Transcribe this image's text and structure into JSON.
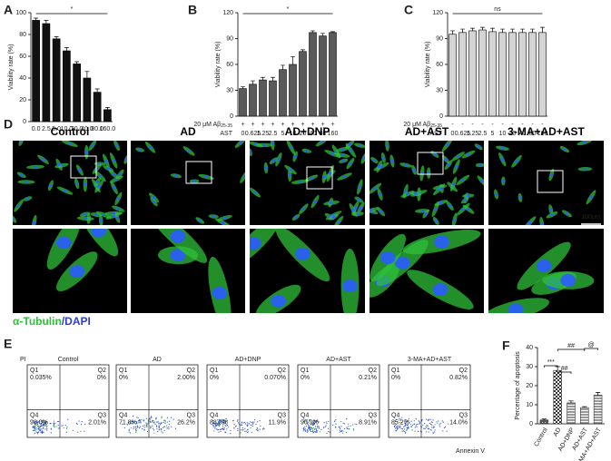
{
  "panel_labels": [
    "A",
    "B",
    "C",
    "D",
    "E",
    "F"
  ],
  "chart_data": [
    {
      "type": "bar",
      "ylabel": "Viability rate (%)",
      "categories": [
        "0.0",
        "2.5",
        "5.0",
        "10.0",
        "20.0",
        "40.0",
        "80.0",
        "160.0"
      ],
      "values": [
        93,
        90,
        76,
        65,
        53,
        40,
        27,
        11
      ],
      "errors": [
        2,
        3,
        2,
        3,
        2,
        6,
        3,
        2
      ],
      "color": "#111111",
      "ylim": [
        0,
        100
      ],
      "yticks": [
        0,
        20,
        40,
        60,
        80,
        100
      ],
      "annotation": "*"
    },
    {
      "type": "bar",
      "ylabel": "Viability rate (%)",
      "categories": [
        "0",
        "0.625",
        "1.25",
        "2.5",
        "5",
        "10",
        "20",
        "40",
        "80",
        "160"
      ],
      "category_row_label": "AST",
      "treatment_row": {
        "label": "20 μM Aβ",
        "label_sub": "25-35",
        "signs": [
          "+",
          "+",
          "+",
          "+",
          "+",
          "+",
          "+",
          "+",
          "+",
          "+"
        ]
      },
      "values": [
        32,
        37,
        42,
        41,
        54,
        60,
        75,
        97,
        93,
        97
      ],
      "errors": [
        2,
        4,
        3,
        4,
        5,
        9,
        2,
        2,
        3,
        1
      ],
      "color": "#5a5a5a",
      "ylim": [
        0,
        120
      ],
      "yticks": [
        0,
        30,
        60,
        90,
        120
      ],
      "annotation": "*"
    },
    {
      "type": "bar",
      "ylabel": "Viability rate (%)",
      "categories": [
        "0",
        "0.625",
        "1.25",
        "2.5",
        "5",
        "10",
        "20",
        "40",
        "80",
        "160"
      ],
      "category_row_label": "AST",
      "treatment_row": {
        "label": "20 μM Aβ",
        "label_sub": "25-35",
        "signs": [
          "-",
          "-",
          "-",
          "-",
          "-",
          "-",
          "-",
          "-",
          "-",
          "-"
        ]
      },
      "values": [
        95,
        97,
        99,
        100,
        98,
        97,
        97,
        97,
        97,
        97
      ],
      "errors": [
        4,
        4,
        3,
        3,
        4,
        4,
        4,
        4,
        4,
        6
      ],
      "color": "#d4d4d4",
      "ylim": [
        0,
        120
      ],
      "yticks": [
        0,
        30,
        60,
        90,
        120
      ],
      "annotation": "ns"
    },
    {
      "type": "bar",
      "ylabel": "Percentage of apoptosis",
      "categories": [
        "Control",
        "AD",
        "AD+DNP",
        "AD+AST",
        "3-MA+AD+AST"
      ],
      "values": [
        2,
        28,
        11,
        8.5,
        15
      ],
      "errors": [
        0.5,
        2,
        1,
        0.5,
        1.5
      ],
      "color": "#333333",
      "ylim": [
        0,
        40
      ],
      "yticks": [
        0,
        10,
        20,
        30,
        40
      ],
      "annotations": [
        "***",
        "##",
        "##",
        "@"
      ]
    }
  ],
  "microscopy": {
    "titles": [
      "Control",
      "AD",
      "AD+DNP",
      "AD+AST",
      "3-MA+AD+AST"
    ],
    "scale_bar": "100μm",
    "stain": [
      "α-Tubulin",
      "/DAPI"
    ]
  },
  "flow": {
    "x_label": "Annexin V",
    "y_label": "PI",
    "quadrants": [
      "Q1",
      "Q2",
      "Q3",
      "Q4"
    ],
    "panels": [
      {
        "title": "Control",
        "q1": "0.035%",
        "q2": "0%",
        "q3": "2.01%",
        "q4": "98.0%"
      },
      {
        "title": "AD",
        "q1": "0%",
        "q2": "2.00%",
        "q3": "26.2%",
        "q4": "71.8%"
      },
      {
        "title": "AD+DNP",
        "q1": "0%",
        "q2": "0.070%",
        "q3": "11.9%",
        "q4": "88.0%"
      },
      {
        "title": "AD+AST",
        "q1": "0%",
        "q2": "0.21%",
        "q3": "8.91%",
        "q4": "90.9%"
      },
      {
        "title": "3-MA+AD+AST",
        "q1": "0%",
        "q2": "0.82%",
        "q3": "14.0%",
        "q4": "85.2%"
      }
    ]
  }
}
